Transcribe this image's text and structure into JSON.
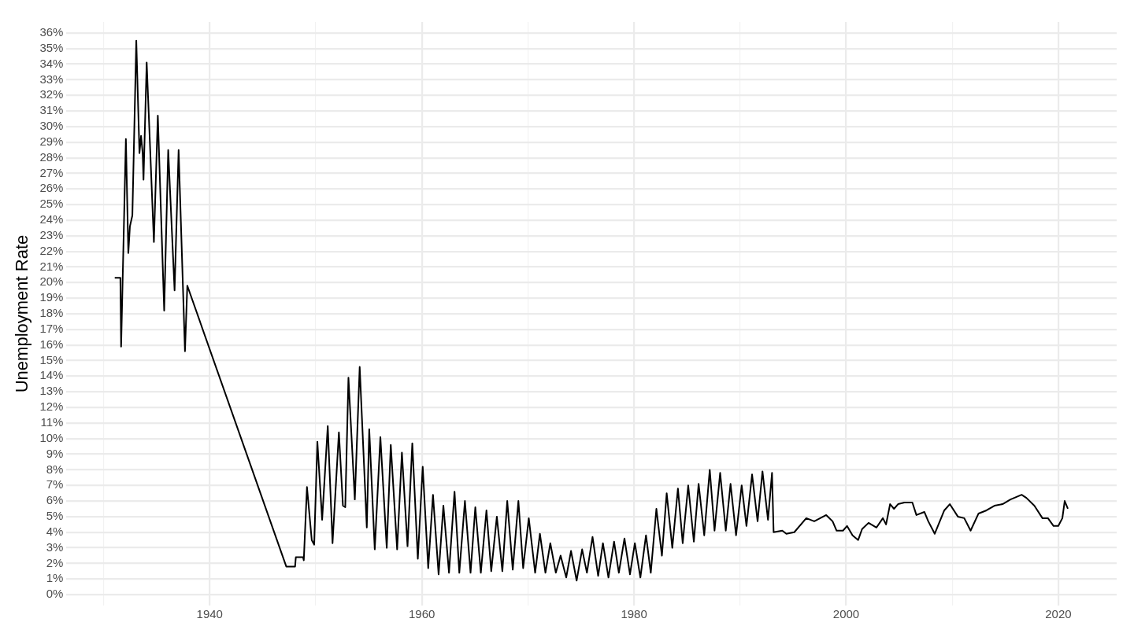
{
  "chart_data": {
    "type": "line",
    "ylabel": "Unemployment Rate",
    "xlim": [
      1926.5,
      2025.5
    ],
    "ylim": [
      -0.7,
      36.7
    ],
    "xticks": [
      {
        "value": 1930,
        "label": null
      },
      1940,
      {
        "value": 1950,
        "label": null
      },
      1960,
      {
        "value": 1970,
        "label": null
      },
      1980,
      {
        "value": 1990,
        "label": null
      },
      2000,
      {
        "value": 2010,
        "label": null
      },
      2020
    ],
    "yticks": [
      {
        "value": 0,
        "label": "0%"
      },
      {
        "value": 1,
        "label": "1%"
      },
      {
        "value": 2,
        "label": "2%"
      },
      {
        "value": 3,
        "label": "3%"
      },
      {
        "value": 4,
        "label": "4%"
      },
      {
        "value": 5,
        "label": "5%"
      },
      {
        "value": 6,
        "label": "6%"
      },
      {
        "value": 7,
        "label": "7%"
      },
      {
        "value": 8,
        "label": "8%"
      },
      {
        "value": 9,
        "label": "9%"
      },
      {
        "value": 10,
        "label": "10%"
      },
      {
        "value": 11,
        "label": "11%"
      },
      {
        "value": 12,
        "label": "12%"
      },
      {
        "value": 13,
        "label": "13%"
      },
      {
        "value": 14,
        "label": "14%"
      },
      {
        "value": 15,
        "label": "15%"
      },
      {
        "value": 16,
        "label": "16%"
      },
      {
        "value": 17,
        "label": "17%"
      },
      {
        "value": 18,
        "label": "18%"
      },
      {
        "value": 19,
        "label": "19%"
      },
      {
        "value": 20,
        "label": "20%"
      },
      {
        "value": 21,
        "label": "21%"
      },
      {
        "value": 22,
        "label": "22%"
      },
      {
        "value": 23,
        "label": "23%"
      },
      {
        "value": 24,
        "label": "24%"
      },
      {
        "value": 25,
        "label": "25%"
      },
      {
        "value": 26,
        "label": "26%"
      },
      {
        "value": 27,
        "label": "27%"
      },
      {
        "value": 28,
        "label": "28%"
      },
      {
        "value": 29,
        "label": "29%"
      },
      {
        "value": 30,
        "label": "30%"
      },
      {
        "value": 31,
        "label": "31%"
      },
      {
        "value": 32,
        "label": "32%"
      },
      {
        "value": 33,
        "label": "33%"
      },
      {
        "value": 34,
        "label": "34%"
      },
      {
        "value": 35,
        "label": "35%"
      },
      {
        "value": 36,
        "label": "36%"
      }
    ],
    "grid": true,
    "legend": false,
    "series": [
      {
        "color": "#000000",
        "x": [
          1931.05,
          1931.58,
          1931.65,
          1932.1,
          1932.33,
          1932.48,
          1932.71,
          1933.08,
          1933.38,
          1933.53,
          1933.68,
          1933.76,
          1934.06,
          1934.74,
          1935.11,
          1935.71,
          1936.09,
          1936.69,
          1937.07,
          1937.67,
          1937.89,
          1947.22,
          1948.05,
          1948.12,
          1948.8,
          1948.87,
          1949.17,
          1949.62,
          1949.85,
          1950.15,
          1950.6,
          1951.13,
          1951.58,
          1952.18,
          1952.56,
          1952.78,
          1953.08,
          1953.68,
          1954.14,
          1954.81,
          1955.04,
          1955.56,
          1956.09,
          1956.69,
          1957.07,
          1957.67,
          1958.12,
          1958.65,
          1959.1,
          1959.62,
          1960.08,
          1960.6,
          1961.05,
          1961.58,
          1962.03,
          1962.56,
          1963.08,
          1963.53,
          1964.06,
          1964.59,
          1965.04,
          1965.56,
          1966.09,
          1966.54,
          1967.07,
          1967.59,
          1968.05,
          1968.57,
          1969.1,
          1969.55,
          1970.08,
          1970.68,
          1971.13,
          1971.65,
          1972.11,
          1972.63,
          1973.08,
          1973.61,
          1974.06,
          1974.59,
          1975.11,
          1975.56,
          1976.09,
          1976.62,
          1977.07,
          1977.59,
          1978.12,
          1978.57,
          1979.1,
          1979.62,
          1980.08,
          1980.6,
          1981.13,
          1981.58,
          1982.11,
          1982.63,
          1983.08,
          1983.61,
          1984.14,
          1984.59,
          1985.11,
          1985.64,
          1986.09,
          1986.62,
          1987.14,
          1987.59,
          1988.12,
          1988.65,
          1989.1,
          1989.62,
          1990.15,
          1990.6,
          1991.13,
          1991.65,
          1992.11,
          1992.63,
          1993.01,
          1993.16,
          1993.98,
          1994.36,
          1995.11,
          1996.24,
          1996.99,
          1998.12,
          1998.72,
          1999.1,
          1999.7,
          2000.08,
          2000.6,
          2001.13,
          2001.5,
          2002.11,
          2002.86,
          2003.46,
          2003.76,
          2004.14,
          2004.51,
          2004.89,
          2005.49,
          2006.24,
          2006.62,
          2007.37,
          2007.74,
          2008.35,
          2009.25,
          2009.77,
          2010.53,
          2011.13,
          2011.73,
          2012.48,
          2013.23,
          2013.98,
          2014.74,
          2015.49,
          2016.54,
          2016.99,
          2017.74,
          2018.5,
          2019.02,
          2019.55,
          2020.0,
          2020.38,
          2020.6,
          2020.9
        ],
        "values": [
          20.3,
          20.3,
          15.9,
          29.2,
          21.9,
          23.6,
          24.3,
          35.5,
          28.3,
          29.4,
          28.3,
          26.6,
          34.1,
          22.6,
          30.7,
          18.2,
          28.5,
          19.5,
          28.5,
          15.6,
          19.8,
          1.8,
          1.8,
          2.4,
          2.4,
          2.2,
          6.9,
          3.5,
          3.2,
          9.8,
          4.8,
          10.8,
          3.3,
          10.4,
          5.7,
          5.6,
          13.9,
          6.1,
          14.6,
          4.3,
          10.6,
          2.9,
          10.1,
          3.0,
          9.6,
          2.9,
          9.1,
          3.1,
          9.7,
          2.3,
          8.2,
          1.7,
          6.4,
          1.3,
          5.7,
          1.4,
          6.6,
          1.4,
          6.0,
          1.4,
          5.6,
          1.4,
          5.4,
          1.5,
          5.0,
          1.5,
          6.0,
          1.6,
          6.0,
          1.7,
          4.9,
          1.4,
          3.9,
          1.4,
          3.3,
          1.4,
          2.5,
          1.1,
          2.8,
          0.9,
          2.9,
          1.4,
          3.7,
          1.2,
          3.3,
          1.1,
          3.4,
          1.4,
          3.6,
          1.3,
          3.3,
          1.1,
          3.8,
          1.4,
          5.5,
          2.5,
          6.5,
          3.0,
          6.8,
          3.3,
          7.0,
          3.4,
          7.1,
          3.8,
          8.0,
          4.1,
          7.8,
          4.1,
          7.1,
          3.8,
          7.0,
          4.4,
          7.7,
          4.7,
          7.9,
          4.8,
          7.8,
          4.0,
          4.1,
          3.9,
          4.0,
          4.9,
          4.7,
          5.1,
          4.7,
          4.1,
          4.1,
          4.4,
          3.8,
          3.5,
          4.2,
          4.6,
          4.3,
          4.9,
          4.5,
          5.8,
          5.5,
          5.8,
          5.9,
          5.9,
          5.1,
          5.3,
          4.7,
          3.9,
          5.4,
          5.8,
          5.0,
          4.9,
          4.1,
          5.2,
          5.4,
          5.7,
          5.8,
          6.1,
          6.4,
          6.2,
          5.7,
          4.9,
          4.9,
          4.4,
          4.4,
          4.9,
          6.0,
          5.5
        ]
      }
    ]
  }
}
